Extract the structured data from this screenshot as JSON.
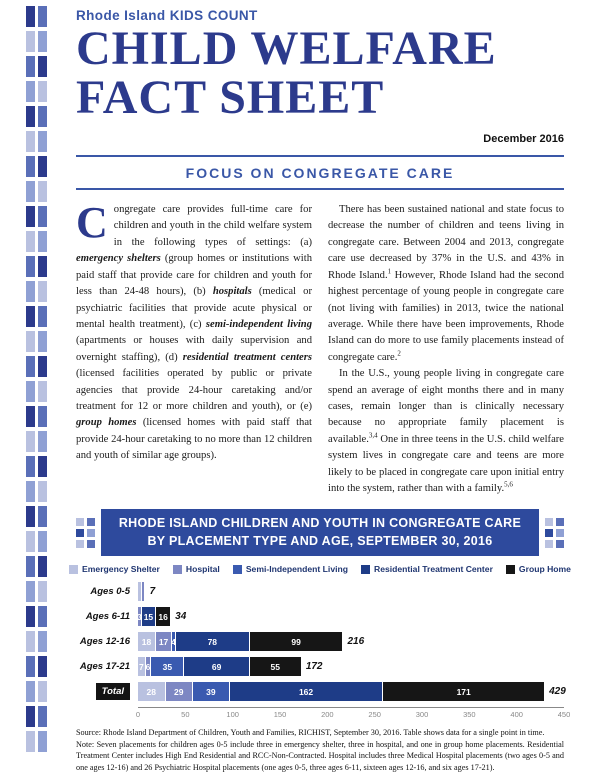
{
  "header": {
    "brand": "Rhode Island KIDS COUNT",
    "title_line1": "CHILD WELFARE",
    "title_line2": "FACT SHEET",
    "date": "December 2016"
  },
  "section": {
    "title": "FOCUS ON CONGREGATE CARE"
  },
  "intro": {
    "dropcap": "C",
    "segments": [
      {
        "t": "ongregate care provides full-time care for children and youth in the child welfare system in the following types of settings: (a) "
      },
      {
        "t": "emergency shelters",
        "s": "em"
      },
      {
        "t": " (group homes or institutions with paid staff that provide care for children and youth for less than 24-48 hours), (b) "
      },
      {
        "t": "hospitals",
        "s": "em"
      },
      {
        "t": " (medical or psychiatric facilities that provide acute physical or mental health treatment), (c) "
      },
      {
        "t": "semi-independent living",
        "s": "em"
      },
      {
        "t": " (apartments or houses with daily supervision and overnight staffing), (d) "
      },
      {
        "t": "residential treatment centers",
        "s": "em"
      },
      {
        "t": " (licensed facilities operated by public or private agencies that provide 24-hour caretaking and/or treatment for 12 or more children and youth), or (e) "
      },
      {
        "t": "group homes",
        "s": "em"
      },
      {
        "t": " (licensed homes with paid staff that provide 24-hour caretaking to no more than 12 children and youth of similar age groups)."
      }
    ]
  },
  "right_column": {
    "paragraphs": [
      {
        "segments": [
          {
            "t": "There has been sustained national and state focus to decrease the number of children and teens living in congregate care. Between 2004 and 2013, congregate care use decreased by 37% in the U.S. and 43% in Rhode Island."
          },
          {
            "t": "1",
            "s": "sup"
          },
          {
            "t": " However, Rhode Island had the second highest percentage of young people in congregate care (not living with families) in 2013, twice the national average. While there have been improvements, Rhode Island can do more to use family placements instead of congregate care."
          },
          {
            "t": "2",
            "s": "sup"
          }
        ]
      },
      {
        "segments": [
          {
            "t": "In the U.S., young people living in congregate care spend an average of eight months there and in many cases, remain longer than is clinically necessary because no appropriate family placement is available."
          },
          {
            "t": "3,4",
            "s": "sup"
          },
          {
            "t": " One in three teens in the U.S. child welfare system lives in congregate care and teens are more likely to be placed in congregate care upon initial entry into the system, rather than with a family."
          },
          {
            "t": "5,6",
            "s": "sup"
          }
        ]
      }
    ]
  },
  "banner": {
    "title_line1": "RHODE ISLAND CHILDREN AND YOUTH IN CONGREGATE CARE",
    "title_line2": "BY PLACEMENT TYPE AND AGE, SEPTEMBER 30, 2016"
  },
  "chart_data": {
    "type": "bar",
    "orientation": "horizontal",
    "stacked": true,
    "title": "RHODE ISLAND CHILDREN AND YOUTH IN CONGREGATE CARE BY PLACEMENT TYPE AND AGE, SEPTEMBER 30, 2016",
    "x_max": 450,
    "xticks": [
      0,
      50,
      100,
      150,
      200,
      250,
      300,
      350,
      400,
      450
    ],
    "legend_position": "top",
    "categories": [
      "Ages 0-5",
      "Ages 6-11",
      "Ages 12-16",
      "Ages 17-21",
      "Total"
    ],
    "series": [
      {
        "name": "Emergency Shelter",
        "color": "#b9c1e0",
        "values": [
          3,
          0,
          18,
          7,
          28
        ]
      },
      {
        "name": "Hospital",
        "color": "#7d87c3",
        "values": [
          3,
          3,
          17,
          6,
          29
        ]
      },
      {
        "name": "Semi-Independent Living",
        "color": "#3a5ab0",
        "values": [
          0,
          0,
          4,
          35,
          39
        ]
      },
      {
        "name": "Residential Treatment Center",
        "color": "#1e3c87",
        "values": [
          0,
          15,
          78,
          69,
          162
        ]
      },
      {
        "name": "Group Home",
        "color": "#161616",
        "values": [
          1,
          16,
          99,
          55,
          171
        ]
      }
    ],
    "rows": [
      {
        "category": "Ages 0-5",
        "values": [
          3,
          3,
          0,
          0,
          1
        ],
        "labels": [
          "",
          "",
          "",
          "",
          ""
        ],
        "total": 7
      },
      {
        "category": "Ages 6-11",
        "values": [
          0,
          3,
          0,
          15,
          16
        ],
        "labels": [
          "",
          "3",
          "",
          "15",
          "16"
        ],
        "total": 34
      },
      {
        "category": "Ages 12-16",
        "values": [
          18,
          17,
          4,
          78,
          99
        ],
        "labels": [
          "18",
          "17",
          "4",
          "78",
          "99"
        ],
        "total": 216
      },
      {
        "category": "Ages 17-21",
        "values": [
          7,
          6,
          35,
          69,
          55
        ],
        "labels": [
          "7",
          "6",
          "35",
          "69",
          "55"
        ],
        "total": 172
      },
      {
        "category": "Total",
        "values": [
          28,
          29,
          39,
          162,
          171
        ],
        "labels": [
          "28",
          "29",
          "39",
          "162",
          "171"
        ],
        "total": 429,
        "emphasis": true
      }
    ]
  },
  "footer": {
    "source": "Source: Rhode Island Department of Children, Youth and Families, RICHIST, September 30, 2016. Table shows data for a single point in time.",
    "note": "Note: Seven placements for children ages 0-5 include three in emergency shelter, three in hospital, and one in group home placements. Residential Treatment Center includes High End Residential and RCC-Non-Contracted. Hospital includes three Medical Hospital placements (two ages 0-5 and one ages 12-16) and 26 Psychiatric Hospital placements (one ages 0-5, three ages 6-11, sixteen ages 12-16, and six ages 17-21)."
  },
  "colors": {
    "brand_blue": "#3a57a7",
    "title_navy": "#2c3a8c",
    "banner_blue": "#2e4a9d",
    "group_home_black": "#161616"
  }
}
